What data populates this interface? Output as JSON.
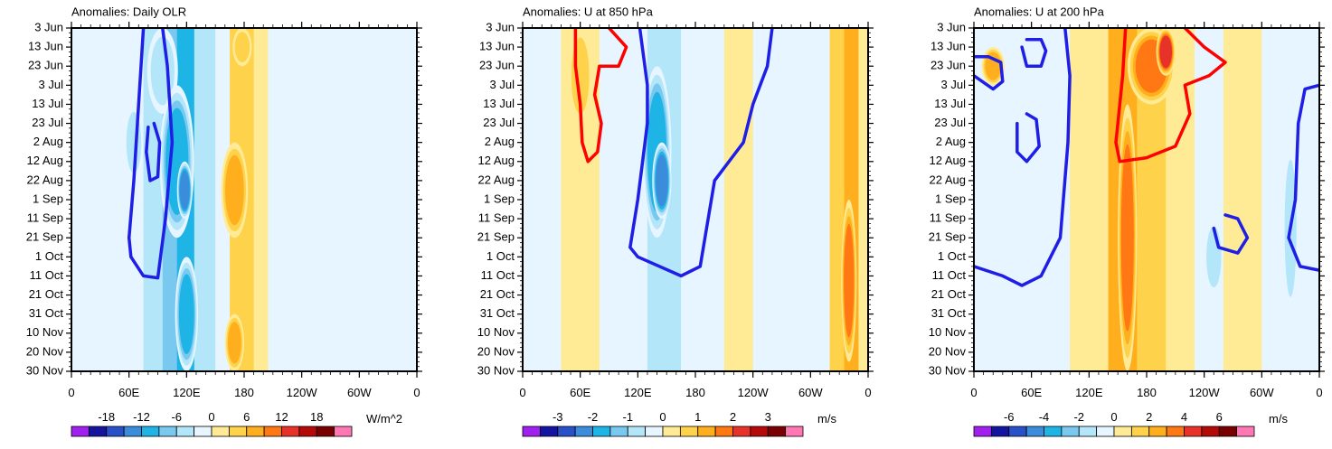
{
  "chart_data": [
    {
      "type": "heatmap",
      "title": "Anomalies: Daily OLR",
      "xlabel": "",
      "ylabel": "",
      "x_ticks": [
        "0",
        "60E",
        "120E",
        "180",
        "120W",
        "60W",
        "0"
      ],
      "y_ticks": [
        "3 Jun",
        "13 Jun",
        "23 Jun",
        "3 Jul",
        "13 Jul",
        "23 Jul",
        "2 Aug",
        "12 Aug",
        "22 Aug",
        "1 Sep",
        "11 Sep",
        "21 Sep",
        "1 Oct",
        "11 Oct",
        "21 Oct",
        "31 Oct",
        "10 Nov",
        "20 Nov",
        "30 Nov"
      ],
      "colorbar": {
        "labels": [
          "-18",
          "-12",
          "-6",
          "0",
          "6",
          "12",
          "18"
        ],
        "units": "W/m^2"
      },
      "bands": [
        {
          "x0": 0,
          "x1": 25,
          "v": -1
        },
        {
          "x0": 25,
          "x1": 40,
          "v": 0
        },
        {
          "x0": 40,
          "x1": 75,
          "v": -1
        },
        {
          "x0": 75,
          "x1": 95,
          "v": -2
        },
        {
          "x0": 95,
          "x1": 110,
          "v": -3
        },
        {
          "x0": 110,
          "x1": 128,
          "v": -4
        },
        {
          "x0": 128,
          "x1": 150,
          "v": -2
        },
        {
          "x0": 150,
          "x1": 165,
          "v": 0
        },
        {
          "x0": 165,
          "x1": 190,
          "v": 2
        },
        {
          "x0": 190,
          "x1": 205,
          "v": 1
        },
        {
          "x0": 205,
          "x1": 240,
          "v": 0
        },
        {
          "x0": 240,
          "x1": 270,
          "v": -1
        },
        {
          "x0": 270,
          "x1": 290,
          "v": -1
        },
        {
          "x0": 290,
          "x1": 300,
          "v": 0
        },
        {
          "x0": 300,
          "x1": 320,
          "v": -1
        },
        {
          "x0": 320,
          "x1": 340,
          "v": 0
        },
        {
          "x0": 340,
          "x1": 360,
          "v": -1
        }
      ],
      "blobs": [
        {
          "lon": 95,
          "d0": 0,
          "d1": 45,
          "w": 16,
          "v": -2
        },
        {
          "lon": 110,
          "d0": 30,
          "d1": 110,
          "w": 18,
          "v": -4
        },
        {
          "lon": 118,
          "d0": 70,
          "d1": 100,
          "w": 8,
          "v": -5
        },
        {
          "lon": 120,
          "d0": 120,
          "d1": 180,
          "w": 12,
          "v": -4
        },
        {
          "lon": 65,
          "d0": 40,
          "d1": 80,
          "w": 10,
          "v": -2
        },
        {
          "lon": 170,
          "d0": 60,
          "d1": 110,
          "w": 14,
          "v": 3
        },
        {
          "lon": 178,
          "d0": 0,
          "d1": 20,
          "w": 10,
          "v": 2
        },
        {
          "lon": 170,
          "d0": 150,
          "d1": 180,
          "w": 10,
          "v": 3
        }
      ],
      "contours": [
        {
          "color": "blue",
          "pts": [
            [
              75,
              0
            ],
            [
              70,
              40
            ],
            [
              65,
              80
            ],
            [
              60,
              110
            ],
            [
              62,
              120
            ],
            [
              75,
              130
            ],
            [
              90,
              131
            ],
            [
              98,
              100
            ],
            [
              105,
              60
            ],
            [
              100,
              20
            ],
            [
              95,
              0
            ]
          ]
        },
        {
          "color": "blue",
          "pts": [
            [
              80,
              52
            ],
            [
              78,
              65
            ],
            [
              82,
              80
            ],
            [
              90,
              78
            ],
            [
              92,
              60
            ],
            [
              86,
              50
            ]
          ]
        }
      ]
    },
    {
      "type": "heatmap",
      "title": "Anomalies: U at 850 hPa",
      "xlabel": "",
      "ylabel": "",
      "x_ticks": [
        "0",
        "60E",
        "120E",
        "180",
        "120W",
        "60W",
        "0"
      ],
      "y_ticks": [
        "3 Jun",
        "13 Jun",
        "23 Jun",
        "3 Jul",
        "13 Jul",
        "23 Jul",
        "2 Aug",
        "12 Aug",
        "22 Aug",
        "1 Sep",
        "11 Sep",
        "21 Sep",
        "1 Oct",
        "11 Oct",
        "21 Oct",
        "31 Oct",
        "10 Nov",
        "20 Nov",
        "30 Nov"
      ],
      "colorbar": {
        "labels": [
          "-3",
          "-2",
          "-1",
          "0",
          "1",
          "2",
          "3"
        ],
        "units": "m/s"
      },
      "bands": [
        {
          "x0": 0,
          "x1": 20,
          "v": -1
        },
        {
          "x0": 20,
          "x1": 40,
          "v": 0
        },
        {
          "x0": 40,
          "x1": 80,
          "v": 1
        },
        {
          "x0": 80,
          "x1": 110,
          "v": 0
        },
        {
          "x0": 110,
          "x1": 130,
          "v": -1
        },
        {
          "x0": 130,
          "x1": 165,
          "v": -2
        },
        {
          "x0": 165,
          "x1": 185,
          "v": -1
        },
        {
          "x0": 185,
          "x1": 210,
          "v": 0
        },
        {
          "x0": 210,
          "x1": 240,
          "v": 1
        },
        {
          "x0": 240,
          "x1": 270,
          "v": 0
        },
        {
          "x0": 270,
          "x1": 300,
          "v": -1
        },
        {
          "x0": 300,
          "x1": 320,
          "v": 0
        },
        {
          "x0": 320,
          "x1": 335,
          "v": 2
        },
        {
          "x0": 335,
          "x1": 350,
          "v": 3
        },
        {
          "x0": 350,
          "x1": 360,
          "v": 1
        }
      ],
      "blobs": [
        {
          "lon": 140,
          "d0": 20,
          "d1": 110,
          "w": 15,
          "v": -4
        },
        {
          "lon": 145,
          "d0": 60,
          "d1": 100,
          "w": 10,
          "v": -5
        },
        {
          "lon": 60,
          "d0": 0,
          "d1": 50,
          "w": 12,
          "v": 2
        },
        {
          "lon": 340,
          "d0": 90,
          "d1": 175,
          "w": 8,
          "v": 4
        }
      ],
      "contours": [
        {
          "color": "red",
          "pts": [
            [
              55,
              0
            ],
            [
              55,
              20
            ],
            [
              60,
              40
            ],
            [
              62,
              60
            ],
            [
              68,
              70
            ],
            [
              78,
              65
            ],
            [
              82,
              50
            ],
            [
              75,
              35
            ],
            [
              80,
              20
            ],
            [
              100,
              20
            ],
            [
              108,
              10
            ],
            [
              90,
              0
            ]
          ]
        },
        {
          "color": "blue",
          "pts": [
            [
              122,
              0
            ],
            [
              130,
              30
            ],
            [
              130,
              50
            ],
            [
              120,
              90
            ],
            [
              112,
              115
            ],
            [
              120,
              120
            ],
            [
              165,
              130
            ],
            [
              185,
              125
            ],
            [
              200,
              80
            ],
            [
              230,
              60
            ],
            [
              240,
              40
            ],
            [
              255,
              20
            ],
            [
              260,
              0
            ]
          ]
        }
      ]
    },
    {
      "type": "heatmap",
      "title": "Anomalies: U at 200 hPa",
      "xlabel": "",
      "ylabel": "",
      "x_ticks": [
        "0",
        "60E",
        "120E",
        "180",
        "120W",
        "60W",
        "0"
      ],
      "y_ticks": [
        "3 Jun",
        "13 Jun",
        "23 Jun",
        "3 Jul",
        "13 Jul",
        "23 Jul",
        "2 Aug",
        "12 Aug",
        "22 Aug",
        "1 Sep",
        "11 Sep",
        "21 Sep",
        "1 Oct",
        "11 Oct",
        "21 Oct",
        "31 Oct",
        "10 Nov",
        "20 Nov",
        "30 Nov"
      ],
      "colorbar": {
        "labels": [
          "-6",
          "-4",
          "-2",
          "0",
          "2",
          "4",
          "6"
        ],
        "units": "m/s"
      },
      "bands": [
        {
          "x0": 0,
          "x1": 30,
          "v": 0
        },
        {
          "x0": 30,
          "x1": 60,
          "v": -1
        },
        {
          "x0": 60,
          "x1": 100,
          "v": 0
        },
        {
          "x0": 100,
          "x1": 140,
          "v": 1
        },
        {
          "x0": 140,
          "x1": 170,
          "v": 3
        },
        {
          "x0": 170,
          "x1": 200,
          "v": 2
        },
        {
          "x0": 200,
          "x1": 230,
          "v": 1
        },
        {
          "x0": 230,
          "x1": 260,
          "v": 0
        },
        {
          "x0": 260,
          "x1": 300,
          "v": 1
        },
        {
          "x0": 300,
          "x1": 320,
          "v": 0
        },
        {
          "x0": 320,
          "x1": 345,
          "v": -1
        },
        {
          "x0": 345,
          "x1": 360,
          "v": 0
        }
      ],
      "blobs": [
        {
          "lon": 185,
          "d0": 0,
          "d1": 40,
          "w": 25,
          "v": 4
        },
        {
          "lon": 200,
          "d0": 0,
          "d1": 25,
          "w": 10,
          "v": 5
        },
        {
          "lon": 160,
          "d0": 40,
          "d1": 180,
          "w": 10,
          "v": 4
        },
        {
          "lon": 20,
          "d0": 10,
          "d1": 30,
          "w": 12,
          "v": 3
        },
        {
          "lon": 250,
          "d0": 100,
          "d1": 140,
          "w": 10,
          "v": -2
        },
        {
          "lon": 330,
          "d0": 60,
          "d1": 150,
          "w": 8,
          "v": -2
        }
      ],
      "contours": [
        {
          "color": "red",
          "pts": [
            [
              158,
              0
            ],
            [
              155,
              25
            ],
            [
              150,
              50
            ],
            [
              148,
              60
            ],
            [
              152,
              70
            ],
            [
              180,
              68
            ],
            [
              210,
              62
            ],
            [
              225,
              45
            ],
            [
              220,
              30
            ],
            [
              245,
              25
            ],
            [
              262,
              18
            ],
            [
              240,
              10
            ],
            [
              220,
              0
            ]
          ]
        },
        {
          "color": "blue",
          "pts": [
            [
              0,
              25
            ],
            [
              20,
              32
            ],
            [
              30,
              28
            ],
            [
              28,
              18
            ],
            [
              15,
              15
            ],
            [
              0,
              15
            ]
          ]
        },
        {
          "color": "blue",
          "pts": [
            [
              50,
              10
            ],
            [
              55,
              20
            ],
            [
              70,
              20
            ],
            [
              75,
              12
            ],
            [
              70,
              6
            ],
            [
              55,
              6
            ]
          ]
        },
        {
          "color": "blue",
          "pts": [
            [
              45,
              50
            ],
            [
              45,
              65
            ],
            [
              55,
              70
            ],
            [
              68,
              62
            ],
            [
              65,
              48
            ],
            [
              55,
              45
            ]
          ]
        },
        {
          "color": "blue",
          "pts": [
            [
              250,
              105
            ],
            [
              255,
              115
            ],
            [
              275,
              118
            ],
            [
              285,
              110
            ],
            [
              275,
              100
            ],
            [
              262,
              98
            ]
          ]
        },
        {
          "color": "blue",
          "pts": [
            [
              0,
              125
            ],
            [
              30,
              130
            ],
            [
              50,
              135
            ],
            [
              70,
              130
            ],
            [
              90,
              110
            ],
            [
              98,
              60
            ],
            [
              100,
              25
            ],
            [
              95,
              0
            ]
          ]
        },
        {
          "color": "blue",
          "pts": [
            [
              360,
              30
            ],
            [
              345,
              32
            ],
            [
              338,
              50
            ],
            [
              335,
              90
            ],
            [
              328,
              110
            ],
            [
              340,
              125
            ],
            [
              360,
              127
            ]
          ]
        }
      ]
    }
  ],
  "palette": [
    "#a020f0",
    "#1414a0",
    "#2850c8",
    "#3c8cdc",
    "#1eb4e6",
    "#78c8f0",
    "#b4e6fa",
    "#e6f5ff",
    "#ffffe6",
    "#ffeb96",
    "#ffd24b",
    "#ffaf1e",
    "#ff7814",
    "#e63228",
    "#b40a0a",
    "#780000",
    "#ff78b4"
  ]
}
